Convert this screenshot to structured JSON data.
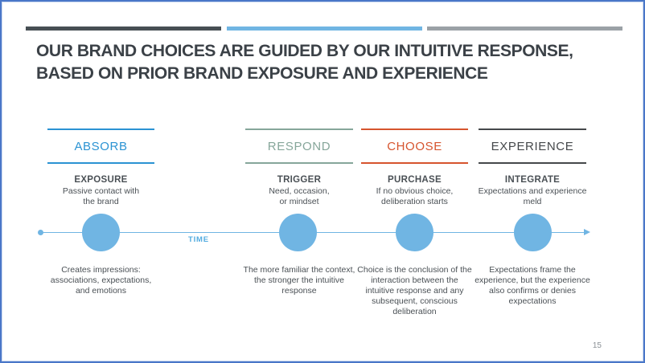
{
  "title": "OUR BRAND CHOICES ARE GUIDED BY OUR INTUITIVE RESPONSE,\nBASED ON PRIOR BRAND EXPOSURE AND EXPERIENCE",
  "page_number": "15",
  "timeline": {
    "label": "TIME"
  },
  "stages": [
    {
      "name": "ABSORB",
      "color": "#2b93d3",
      "phase": "EXPOSURE",
      "phase_desc": "Passive contact with\nthe brand",
      "detail": "Creates impressions:\nassociations, expectations,\nand emotions"
    },
    {
      "name": "RESPOND",
      "color": "#86a69a",
      "phase": "TRIGGER",
      "phase_desc": "Need, occasion,\nor mindset",
      "detail": "The more familiar the context,\nthe stronger the intuitive\nresponse"
    },
    {
      "name": "CHOOSE",
      "color": "#d6542e",
      "phase": "PURCHASE",
      "phase_desc": "If no obvious choice,\ndeliberation starts",
      "detail": "Choice is the conclusion of the\ninteraction between the\nintuitive response and any\nsubsequent, conscious\ndeliberation"
    },
    {
      "name": "EXPERIENCE",
      "color": "#45484b",
      "phase": "INTEGRATE",
      "phase_desc": "Expectations and experience\nmeld",
      "detail": "Expectations frame the\nexperience, but the experience\nalso confirms or denies\nexpectations"
    }
  ],
  "colors": {
    "border": "#4a77c8",
    "bar_dark": "#474f54",
    "bar_blue": "#70b5e3",
    "bar_gray": "#9ba1a6",
    "title": "#3b4147",
    "body": "#4a5055",
    "circle": "#70b5e3",
    "timeline": "#70b5e3",
    "time_label": "#53ace0",
    "page_num": "#8b9196"
  }
}
